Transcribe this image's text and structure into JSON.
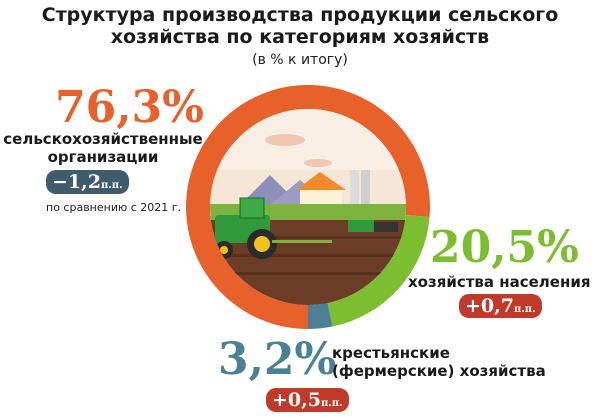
{
  "title_line1": "Структура производства продукции сельского",
  "title_line2": "хозяйства по категориям хозяйств",
  "subtitle": "(в % к итогу)",
  "colors": {
    "orange": "#E8602A",
    "green": "#7DBE31",
    "blue": "#4C8094",
    "badge_red": "#C0392B",
    "badge_dark": "#3F5B6C"
  },
  "comparison_note": "по сравнению с 2021 г.",
  "unit_pp": "п.п.",
  "chart_data": {
    "type": "pie",
    "variant": "donut",
    "title": "Структура производства продукции сельского хозяйства по категориям хозяйств",
    "subtitle": "(в % к итогу)",
    "categories": [
      "сельскохозяйственные организации",
      "хозяйства населения",
      "крестьянские (фермерские) хозяйства"
    ],
    "values": [
      76.3,
      20.5,
      3.2
    ],
    "value_labels": [
      "76,3%",
      "20,5%",
      "3,2%"
    ],
    "changes": [
      "−1,2",
      "+0,7",
      "+0,5"
    ],
    "colors": [
      "#E8602A",
      "#7DBE31",
      "#4C8094"
    ],
    "annotation": "по сравнению с 2021 г."
  },
  "labels": {
    "org_line1": "сельскохозяйственные",
    "org_line2": "организации",
    "pop": "хозяйства населения",
    "farm_line1": "крестьянские",
    "farm_line2": "(фермерские) хозяйства"
  }
}
